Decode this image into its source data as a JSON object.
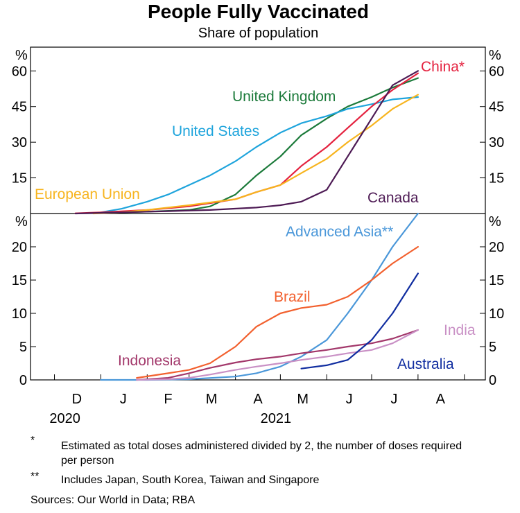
{
  "chart_data": [
    {
      "type": "line",
      "title": "People Fully Vaccinated",
      "subtitle": "Share of population",
      "y_unit": "%",
      "ylim": [
        0,
        70
      ],
      "yticks": [
        15,
        30,
        45,
        60
      ],
      "grid": false,
      "legend": "inline labels",
      "series": [
        {
          "name": "United Kingdom",
          "color": "#1b7a3a",
          "x": [
            "2021-01-01",
            "2021-02-01",
            "2021-03-01",
            "2021-03-15",
            "2021-04-01",
            "2021-04-15",
            "2021-05-01",
            "2021-05-15",
            "2021-06-01",
            "2021-06-15",
            "2021-07-01",
            "2021-07-15",
            "2021-08-01"
          ],
          "y": [
            0.2,
            0.8,
            1.5,
            3,
            8,
            16,
            24,
            33,
            40,
            45,
            49,
            53,
            57
          ]
        },
        {
          "name": "United States",
          "color": "#1ea4dc",
          "x": [
            "2021-01-01",
            "2021-01-15",
            "2021-02-01",
            "2021-02-15",
            "2021-03-01",
            "2021-03-15",
            "2021-04-01",
            "2021-04-15",
            "2021-05-01",
            "2021-05-15",
            "2021-06-01",
            "2021-06-15",
            "2021-07-01",
            "2021-07-15",
            "2021-08-01"
          ],
          "y": [
            0.5,
            2,
            5,
            8,
            12,
            16,
            22,
            28,
            34,
            38,
            41,
            44,
            46,
            48,
            49
          ]
        },
        {
          "name": "China*",
          "color": "#e4223f",
          "x": [
            "2020-12-15",
            "2021-01-01",
            "2021-02-01",
            "2021-03-01",
            "2021-04-01",
            "2021-04-15",
            "2021-05-01",
            "2021-05-15",
            "2021-06-01",
            "2021-06-15",
            "2021-07-01",
            "2021-07-15",
            "2021-08-01"
          ],
          "y": [
            0.1,
            0.5,
            1.5,
            3,
            6,
            9,
            12,
            20,
            28,
            36,
            45,
            52,
            59
          ]
        },
        {
          "name": "European Union",
          "color": "#f7b41e",
          "x": [
            "2020-12-27",
            "2021-01-15",
            "2021-02-01",
            "2021-03-01",
            "2021-04-01",
            "2021-04-15",
            "2021-05-01",
            "2021-05-15",
            "2021-06-01",
            "2021-06-15",
            "2021-07-01",
            "2021-07-15",
            "2021-08-01"
          ],
          "y": [
            0,
            0.5,
            1.5,
            3.5,
            6,
            9,
            12,
            17,
            23,
            30,
            37,
            44,
            50
          ]
        },
        {
          "name": "Canada",
          "color": "#4d1a54",
          "x": [
            "2020-12-15",
            "2021-01-15",
            "2021-02-15",
            "2021-03-15",
            "2021-04-15",
            "2021-05-01",
            "2021-05-15",
            "2021-06-01",
            "2021-06-15",
            "2021-07-01",
            "2021-07-15",
            "2021-08-01"
          ],
          "y": [
            0,
            0.5,
            1,
            1.5,
            2.5,
            3.5,
            5,
            10,
            24,
            40,
            54,
            60
          ]
        }
      ],
      "annotations": [
        "United Kingdom",
        "United States",
        "China*",
        "European Union",
        "Canada"
      ]
    },
    {
      "type": "line",
      "y_unit": "%",
      "ylim": [
        0,
        25
      ],
      "yticks": [
        0,
        5,
        10,
        15,
        20
      ],
      "grid": false,
      "legend": "inline labels",
      "xtick_labels": [
        "D",
        "J",
        "F",
        "M",
        "A",
        "M",
        "J",
        "J",
        "A"
      ],
      "year_labels": [
        "2020",
        "2021"
      ],
      "series": [
        {
          "name": "Advanced Asia**",
          "color": "#4a97d9",
          "x": [
            "2021-01-01",
            "2021-02-01",
            "2021-03-01",
            "2021-04-01",
            "2021-04-15",
            "2021-05-01",
            "2021-05-15",
            "2021-06-01",
            "2021-06-15",
            "2021-07-01",
            "2021-07-15",
            "2021-08-01"
          ],
          "y": [
            0,
            0,
            0.1,
            0.5,
            1,
            2,
            3.5,
            6,
            10,
            15,
            20,
            25
          ]
        },
        {
          "name": "Brazil",
          "color": "#f2602e",
          "x": [
            "2021-01-25",
            "2021-02-15",
            "2021-03-01",
            "2021-03-15",
            "2021-04-01",
            "2021-04-15",
            "2021-05-01",
            "2021-05-15",
            "2021-06-01",
            "2021-06-15",
            "2021-07-01",
            "2021-07-15",
            "2021-08-01"
          ],
          "y": [
            0.3,
            1,
            1.5,
            2.5,
            5,
            8,
            10,
            10.8,
            11.3,
            12.5,
            15,
            17.5,
            20
          ]
        },
        {
          "name": "Indonesia",
          "color": "#a2376a",
          "x": [
            "2021-01-25",
            "2021-02-15",
            "2021-03-01",
            "2021-03-15",
            "2021-04-01",
            "2021-04-15",
            "2021-05-01",
            "2021-05-15",
            "2021-06-01",
            "2021-06-15",
            "2021-07-01",
            "2021-07-15",
            "2021-08-01"
          ],
          "y": [
            0,
            0.3,
            1,
            1.8,
            2.6,
            3.1,
            3.5,
            4,
            4.5,
            5,
            5.5,
            6.2,
            7.5
          ]
        },
        {
          "name": "India",
          "color": "#c990c5",
          "x": [
            "2021-01-25",
            "2021-02-15",
            "2021-03-01",
            "2021-03-15",
            "2021-04-01",
            "2021-04-15",
            "2021-05-01",
            "2021-05-15",
            "2021-06-01",
            "2021-06-15",
            "2021-07-01",
            "2021-07-15",
            "2021-08-01"
          ],
          "y": [
            0,
            0.1,
            0.3,
            0.8,
            1.5,
            2,
            2.5,
            3,
            3.5,
            4,
            4.5,
            5.5,
            7.5
          ]
        },
        {
          "name": "Australia",
          "color": "#102da0",
          "x": [
            "2021-05-15",
            "2021-06-01",
            "2021-06-15",
            "2021-07-01",
            "2021-07-15",
            "2021-08-01"
          ],
          "y": [
            1.7,
            2.2,
            3,
            6,
            10,
            16
          ]
        }
      ],
      "annotations": [
        "Advanced Asia**",
        "Brazil",
        "Indonesia",
        "India",
        "Australia"
      ]
    }
  ],
  "notes": [
    {
      "mark": "*",
      "text": "Estimated as total doses administered divided by 2, the number of doses required per person"
    },
    {
      "mark": "**",
      "text": "Includes Japan, South Korea, Taiwan and Singapore"
    }
  ],
  "sources": "Sources: Our World in Data; RBA"
}
